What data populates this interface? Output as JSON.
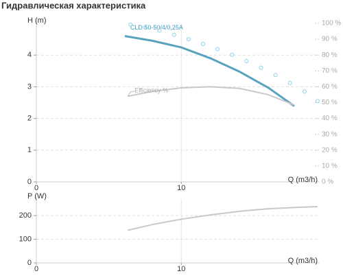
{
  "title": "Гидравлическая характеристика",
  "chart_data": [
    {
      "type": "line",
      "ylabel": "H (m)",
      "xlabel": "Q (m3/h)",
      "xlim": [
        0,
        19.5
      ],
      "xticks": [
        0,
        10
      ],
      "ylim": [
        0,
        5
      ],
      "yticks": [
        0,
        1,
        2,
        3,
        4
      ],
      "y2lim": [
        0,
        100
      ],
      "y2ticks": [
        {
          "value": 0,
          "label": "0 %"
        },
        {
          "value": 10,
          "label": "10 %"
        },
        {
          "value": 20,
          "label": "20 %"
        },
        {
          "value": 30,
          "label": "30 %"
        },
        {
          "value": 40,
          "label": "40 %"
        },
        {
          "value": 50,
          "label": "50 %"
        },
        {
          "value": 60,
          "label": "60 %"
        },
        {
          "value": 70,
          "label": "70 %"
        },
        {
          "value": 80,
          "label": "80 %"
        },
        {
          "value": 90,
          "label": "90 %"
        },
        {
          "value": 100,
          "label": "100 %"
        }
      ],
      "grid": true,
      "series": [
        {
          "name": "CLD 50-50/4/0,25A",
          "color": "#5aa3bf",
          "x": [
            6.1,
            8,
            10,
            12,
            14,
            16,
            17.8
          ],
          "values": [
            4.6,
            4.45,
            4.24,
            3.9,
            3.48,
            2.97,
            2.39
          ]
        },
        {
          "name": "Efficiency %",
          "color": "#c8c8c8",
          "axis": "y2",
          "x": [
            6.3,
            8,
            10,
            12,
            14,
            16,
            17.8
          ],
          "values": [
            54,
            57,
            59.3,
            60,
            59,
            55,
            48.5
          ]
        },
        {
          "color": "#8fd0ea",
          "marker": "open-circle",
          "x": [
            6.5,
            7.5,
            8.5,
            9.5,
            10.5,
            11.5,
            12.5,
            13.5,
            14.5,
            15.5,
            16.5,
            17.5,
            18.5,
            19.4
          ],
          "values": [
            4.96,
            4.87,
            4.77,
            4.64,
            4.5,
            4.35,
            4.19,
            4.01,
            3.81,
            3.6,
            3.37,
            3.12,
            2.85,
            2.55
          ]
        }
      ]
    },
    {
      "type": "line",
      "ylabel": "P (W)",
      "xlabel": "Q (m3/h)",
      "xlim": [
        0,
        19.5
      ],
      "xticks": [
        0,
        10
      ],
      "ylim": [
        0,
        270
      ],
      "yticks": [
        0,
        100,
        200
      ],
      "grid": true,
      "series": [
        {
          "color": "#c8c8c8",
          "x": [
            6.3,
            8,
            10,
            12,
            14,
            16,
            18,
            19.4
          ],
          "values": [
            138,
            162,
            185,
            203,
            218,
            229,
            235,
            238
          ]
        }
      ]
    }
  ]
}
